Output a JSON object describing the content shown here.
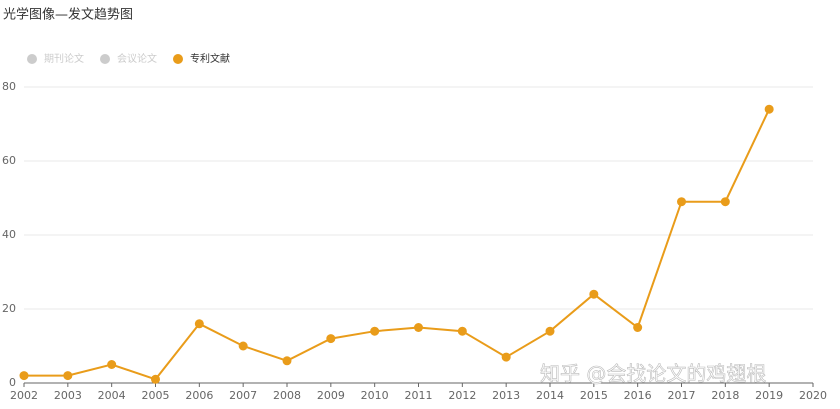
{
  "chart_data": {
    "type": "line",
    "title": "光学图像—发文趋势图",
    "x": [
      2002,
      2003,
      2004,
      2005,
      2006,
      2007,
      2008,
      2009,
      2010,
      2011,
      2012,
      2013,
      2014,
      2015,
      2016,
      2017,
      2018,
      2019
    ],
    "xlim": [
      2002,
      2020
    ],
    "xticks": [
      2002,
      2003,
      2004,
      2005,
      2006,
      2007,
      2008,
      2009,
      2010,
      2011,
      2012,
      2013,
      2014,
      2015,
      2016,
      2017,
      2018,
      2019,
      2020
    ],
    "ylim": [
      0,
      80
    ],
    "yticks": [
      0,
      20,
      40,
      60,
      80
    ],
    "grid": true,
    "legend_hidden": [
      {
        "name": "期刊论文",
        "color": "#cccccc"
      },
      {
        "name": "会议论文",
        "color": "#cccccc"
      }
    ],
    "series": [
      {
        "name": "专利文献",
        "color": "#e99c1a",
        "values": [
          2,
          2,
          5,
          1,
          16,
          10,
          6,
          12,
          14,
          15,
          14,
          7,
          14,
          24,
          15,
          49,
          49,
          74
        ]
      }
    ],
    "watermark": "知乎 @会找论文的鸡翅根"
  }
}
